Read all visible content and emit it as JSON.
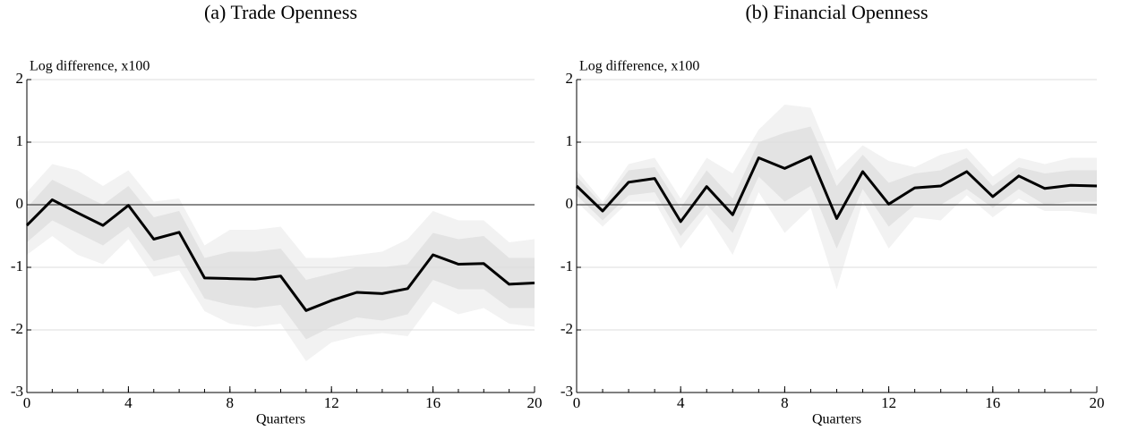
{
  "chart_data": [
    {
      "type": "line",
      "title": "(a) Trade Openness",
      "ylabel": "Log difference, x100",
      "xlabel": "Quarters",
      "x": [
        0,
        1,
        2,
        3,
        4,
        5,
        6,
        7,
        8,
        9,
        10,
        11,
        12,
        13,
        14,
        15,
        16,
        17,
        18,
        19,
        20
      ],
      "series": [
        {
          "color": "#000000",
          "values": [
            -0.33,
            0.08,
            -0.13,
            -0.33,
            -0.01,
            -0.55,
            -0.44,
            -1.17,
            -1.18,
            -1.19,
            -1.14,
            -1.69,
            -1.53,
            -1.4,
            -1.42,
            -1.34,
            -0.8,
            -0.95,
            -0.94,
            -1.27,
            -1.25
          ]
        }
      ],
      "bands": [
        {
          "color": "#f2f2f2",
          "upper": [
            0.2,
            0.65,
            0.55,
            0.3,
            0.55,
            0.05,
            0.1,
            -0.65,
            -0.4,
            -0.4,
            -0.35,
            -0.85,
            -0.85,
            -0.8,
            -0.75,
            -0.55,
            -0.1,
            -0.25,
            -0.25,
            -0.6,
            -0.55
          ],
          "lower": [
            -0.8,
            -0.5,
            -0.8,
            -0.95,
            -0.55,
            -1.15,
            -1.05,
            -1.7,
            -1.9,
            -1.95,
            -1.9,
            -2.5,
            -2.2,
            -2.1,
            -2.05,
            -2.1,
            -1.55,
            -1.75,
            -1.65,
            -1.9,
            -1.95
          ]
        },
        {
          "color": "#e3e3e3",
          "upper": [
            -0.05,
            0.4,
            0.2,
            0.0,
            0.3,
            -0.2,
            -0.1,
            -0.85,
            -0.75,
            -0.75,
            -0.7,
            -1.2,
            -1.1,
            -1.0,
            -1.0,
            -0.95,
            -0.45,
            -0.55,
            -0.5,
            -0.85,
            -0.85
          ],
          "lower": [
            -0.6,
            -0.25,
            -0.45,
            -0.65,
            -0.35,
            -0.9,
            -0.8,
            -1.5,
            -1.6,
            -1.65,
            -1.6,
            -2.15,
            -1.95,
            -1.8,
            -1.85,
            -1.75,
            -1.2,
            -1.35,
            -1.35,
            -1.65,
            -1.65
          ]
        }
      ],
      "xlim": [
        0,
        20
      ],
      "ylim": [
        -3,
        2
      ],
      "xticks": [
        0,
        4,
        8,
        12,
        16,
        20
      ],
      "yticks": [
        -3,
        -2,
        -1,
        0,
        1,
        2
      ],
      "grid": true,
      "refline": 0
    },
    {
      "type": "line",
      "title": "(b) Financial Openness",
      "ylabel": "Log difference, x100",
      "xlabel": "Quarters",
      "x": [
        0,
        1,
        2,
        3,
        4,
        5,
        6,
        7,
        8,
        9,
        10,
        11,
        12,
        13,
        14,
        15,
        16,
        17,
        18,
        19,
        20
      ],
      "series": [
        {
          "color": "#000000",
          "values": [
            0.3,
            -0.1,
            0.36,
            0.42,
            -0.27,
            0.29,
            -0.16,
            0.75,
            0.58,
            0.77,
            -0.22,
            0.53,
            0.01,
            0.27,
            0.3,
            0.53,
            0.13,
            0.46,
            0.26,
            0.31,
            0.3
          ]
        }
      ],
      "bands": [
        {
          "color": "#f2f2f2",
          "upper": [
            0.55,
            0.05,
            0.65,
            0.75,
            0.1,
            0.75,
            0.5,
            1.2,
            1.6,
            1.55,
            0.55,
            0.95,
            0.7,
            0.6,
            0.8,
            0.9,
            0.45,
            0.75,
            0.65,
            0.75,
            0.75
          ],
          "lower": [
            0.05,
            -0.35,
            0.05,
            0.05,
            -0.7,
            -0.15,
            -0.8,
            0.2,
            -0.45,
            -0.05,
            -1.35,
            0.05,
            -0.7,
            -0.2,
            -0.25,
            0.15,
            -0.2,
            0.1,
            -0.1,
            -0.1,
            -0.15
          ]
        },
        {
          "color": "#e3e3e3",
          "upper": [
            0.45,
            0.0,
            0.55,
            0.6,
            -0.05,
            0.55,
            0.1,
            1.0,
            1.15,
            1.25,
            0.3,
            0.8,
            0.35,
            0.5,
            0.55,
            0.75,
            0.3,
            0.6,
            0.5,
            0.55,
            0.55
          ],
          "lower": [
            0.15,
            -0.25,
            0.15,
            0.2,
            -0.5,
            0.0,
            -0.45,
            0.45,
            0.05,
            0.3,
            -0.7,
            0.25,
            -0.35,
            0.0,
            0.0,
            0.25,
            -0.05,
            0.25,
            0.0,
            0.05,
            0.05
          ]
        }
      ],
      "xlim": [
        0,
        20
      ],
      "ylim": [
        -3,
        2
      ],
      "xticks": [
        0,
        4,
        8,
        12,
        16,
        20
      ],
      "yticks": [
        -3,
        -2,
        -1,
        0,
        1,
        2
      ],
      "grid": true,
      "refline": 0
    }
  ]
}
